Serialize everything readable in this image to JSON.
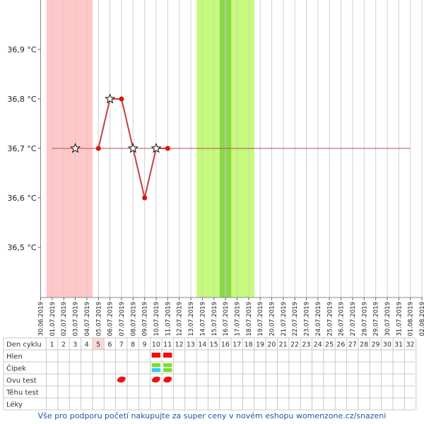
{
  "chart_data": {
    "type": "line",
    "y_unit": "°C",
    "y_ticks": [
      "36,5 °C",
      "36,6 °C",
      "36,7 °C",
      "36,8 °C",
      "36,9 °C"
    ],
    "y_tick_values": [
      36.5,
      36.6,
      36.7,
      36.8,
      36.9
    ],
    "ylim": [
      36.4,
      37.0
    ],
    "dates": [
      "30.06.2019",
      "01.07.2019",
      "02.07.2019",
      "03.07.2019",
      "04.07.2019",
      "05.07.2019",
      "06.07.2019",
      "07.07.2019",
      "08.07.2019",
      "09.07.2019",
      "10.07.2019",
      "11.07.2019",
      "12.07.2019",
      "13.07.2019",
      "14.07.2019",
      "15.07.2019",
      "16.07.2019",
      "17.07.2019",
      "18.07.2019",
      "19.07.2019",
      "20.07.2019",
      "21.07.2019",
      "22.07.2019",
      "23.07.2019",
      "24.07.2019",
      "25.07.2019",
      "26.07.2019",
      "27.07.2019",
      "28.07.2019",
      "29.07.2019",
      "30.07.2019",
      "31.07.2019",
      "01.08.2019",
      "02.08.2019"
    ],
    "temperatures": [
      {
        "date": "05.07.2019",
        "value": 36.7
      },
      {
        "date": "06.07.2019",
        "value": 36.8
      },
      {
        "date": "07.07.2019",
        "value": 36.8
      },
      {
        "date": "08.07.2019",
        "value": 36.7
      },
      {
        "date": "09.07.2019",
        "value": 36.6
      },
      {
        "date": "10.07.2019",
        "value": 36.7
      },
      {
        "date": "11.07.2019",
        "value": 36.7
      }
    ],
    "star_marks": [
      "03.07.2019",
      "06.07.2019",
      "08.07.2019",
      "10.07.2019"
    ],
    "baseline": {
      "value": 36.7,
      "from": "01.07.2019",
      "to": "01.08.2019"
    },
    "menstruation_band": {
      "from": "30.06.2019",
      "to": "04.07.2019",
      "color": "#ffc7c7"
    },
    "fertile_band": {
      "from": "13.07.2019",
      "to": "18.07.2019",
      "color": "#c5fa7a"
    },
    "ovulation_band": {
      "from": "15.07.2019",
      "to": "16.07.2019",
      "color": "#8bd84b"
    },
    "line_color": "#c44040",
    "point_color": "#e01010",
    "grid": true
  },
  "cycle_table": {
    "rows": [
      {
        "label": "Den cyklu"
      },
      {
        "label": "Hlen",
        "marks": [
          {
            "day": 10,
            "color": "#ee1111"
          },
          {
            "day": 11,
            "color": "#ee1111"
          }
        ]
      },
      {
        "label": "Čípek",
        "marks": [
          {
            "day": 10,
            "colors": [
              "#77dd33",
              "#33ccee"
            ]
          },
          {
            "day": 11,
            "colors": [
              "#77dd33",
              "#77dd33"
            ]
          }
        ]
      },
      {
        "label": "Ovu test",
        "marks": [
          {
            "day": 7,
            "color": "#ee1111"
          },
          {
            "day": 10,
            "color": "#ee1111"
          },
          {
            "day": 11,
            "color": "#ee1111"
          }
        ]
      },
      {
        "label": "Těhu test"
      },
      {
        "label": "Léky"
      }
    ],
    "days": [
      "1",
      "2",
      "3",
      "4",
      "5",
      "6",
      "7",
      "8",
      "9",
      "10",
      "11",
      "12",
      "13",
      "14",
      "15",
      "16",
      "17",
      "18",
      "19",
      "20",
      "21",
      "22",
      "23",
      "24",
      "25",
      "26",
      "27",
      "28",
      "29",
      "30",
      "31",
      "32"
    ],
    "highlight_day": "5",
    "highlight_color": "#fadad4"
  },
  "footer": {
    "text": "Vše pro podporu početí nakupujte za super ceny v novém eshopu womenzone.cz/snazeni"
  }
}
